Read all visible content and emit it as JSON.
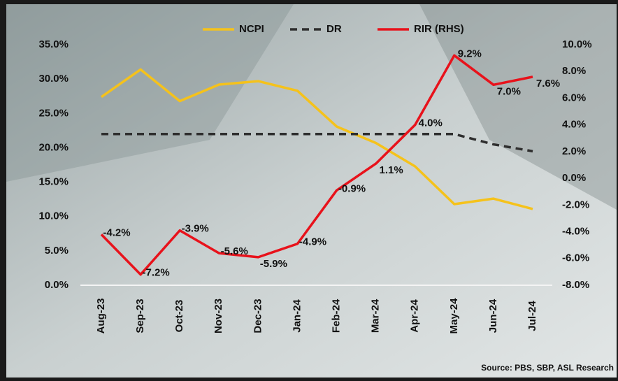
{
  "chart_data": {
    "type": "line",
    "categories": [
      "Aug-23",
      "Sep-23",
      "Oct-23",
      "Nov-23",
      "Dec-23",
      "Jan-24",
      "Feb-24",
      "Mar-24",
      "Apr-24",
      "May-24",
      "Jun-24",
      "Jul-24"
    ],
    "series": [
      {
        "name": "NCPI",
        "color": "#f5c21b",
        "style": "solid",
        "values": [
          27.4,
          31.4,
          26.8,
          29.2,
          29.7,
          28.3,
          23.1,
          20.7,
          17.3,
          11.8,
          12.6,
          11.1
        ]
      },
      {
        "name": "DR",
        "color": "#2e2e2e",
        "style": "dashed",
        "values": [
          22,
          22,
          22,
          22,
          22,
          22,
          22,
          22,
          22,
          22,
          20.5,
          19.5
        ]
      },
      {
        "name": "RIR (RHS)",
        "color": "#e8121b",
        "style": "solid",
        "axis": "y2",
        "values": [
          -4.2,
          -7.2,
          -3.9,
          -5.6,
          -5.9,
          -4.9,
          -0.9,
          1.1,
          4.0,
          9.2,
          7.0,
          7.6
        ],
        "value_labels": [
          "-4.2%",
          "-7.2%",
          "-3.9%",
          "-5.6%",
          "-5.9%",
          "-4.9%",
          "-0.9%",
          "1.1%",
          "4.0%",
          "9.2%",
          "7.0%",
          "7.6%"
        ]
      }
    ],
    "ylim": [
      0,
      35
    ],
    "yticks": [
      {
        "value": 0,
        "label": "0.0%"
      },
      {
        "value": 5,
        "label": "5.0%"
      },
      {
        "value": 10,
        "label": "10.0%"
      },
      {
        "value": 15,
        "label": "15.0%"
      },
      {
        "value": 20,
        "label": "20.0%"
      },
      {
        "value": 25,
        "label": "25.0%"
      },
      {
        "value": 30,
        "label": "30.0%"
      },
      {
        "value": 35,
        "label": "35.0%"
      }
    ],
    "y2lim": [
      -8,
      10
    ],
    "y2ticks": [
      {
        "value": -8,
        "label": "-8.0%"
      },
      {
        "value": -6,
        "label": "-6.0%"
      },
      {
        "value": -4,
        "label": "-4.0%"
      },
      {
        "value": -2,
        "label": "-2.0%"
      },
      {
        "value": 0,
        "label": "0.0%"
      },
      {
        "value": 2,
        "label": "2.0%"
      },
      {
        "value": 4,
        "label": "4.0%"
      },
      {
        "value": 6,
        "label": "6.0%"
      },
      {
        "value": 8,
        "label": "8.0%"
      },
      {
        "value": 10,
        "label": "10.0%"
      }
    ],
    "legend": "top",
    "source": "Source: PBS, SBP, ASL Research"
  }
}
